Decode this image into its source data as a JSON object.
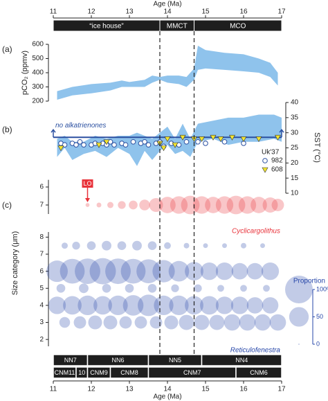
{
  "age_axis": {
    "label": "Age (Ma)",
    "xlim": [
      11,
      17
    ],
    "xticks": [
      11,
      12,
      13,
      14,
      15,
      16,
      17
    ]
  },
  "intervals": [
    {
      "label": "“ice house”",
      "start": 11,
      "end": 13.8
    },
    {
      "label": "MMCT",
      "start": 13.8,
      "end": 14.7
    },
    {
      "label": "MCO",
      "start": 14.7,
      "end": 17
    }
  ],
  "zones": {
    "nannofossil": [
      {
        "label": "NN7",
        "start": 11,
        "end": 11.9
      },
      {
        "label": "NN6",
        "start": 11.9,
        "end": 13.5
      },
      {
        "label": "NN5",
        "start": 13.5,
        "end": 14.9
      },
      {
        "label": "NN4",
        "start": 14.9,
        "end": 17
      }
    ],
    "cnm": [
      {
        "label": "CNM11",
        "start": 11,
        "end": 11.6
      },
      {
        "label": "10",
        "start": 11.6,
        "end": 11.9
      },
      {
        "label": "CNM9",
        "start": 11.9,
        "end": 12.5
      },
      {
        "label": "CNM8",
        "start": 12.5,
        "end": 13.5
      },
      {
        "label": "CNM7",
        "start": 13.5,
        "end": 15.8
      },
      {
        "label": "CNM6",
        "start": 15.8,
        "end": 17
      }
    ]
  },
  "chart_data": [
    {
      "type": "band",
      "panel": "(a)",
      "ylabel": "pCO₂ (ppmv)",
      "ylim": [
        200,
        600
      ],
      "yticks": [
        200,
        300,
        400,
        500,
        600
      ],
      "color": "#8fc3ec",
      "x": [
        11.1,
        11.5,
        12.0,
        12.5,
        12.8,
        13.0,
        13.4,
        13.6,
        13.8,
        14.0,
        14.3,
        14.5,
        14.7,
        14.8,
        15.0,
        15.5,
        16.0,
        16.4,
        16.7,
        16.9
      ],
      "lower": [
        210,
        240,
        255,
        275,
        300,
        300,
        300,
        330,
        350,
        330,
        320,
        300,
        350,
        420,
        430,
        420,
        410,
        400,
        370,
        310
      ],
      "upper": [
        270,
        300,
        320,
        330,
        345,
        335,
        350,
        380,
        370,
        380,
        380,
        370,
        430,
        590,
        560,
        540,
        530,
        500,
        470,
        400
      ]
    },
    {
      "type": "scatter",
      "panel": "(b)",
      "ylabel": "SST (°C)",
      "ylim": [
        10,
        40
      ],
      "yticks": [
        10,
        15,
        20,
        25,
        30,
        35,
        40
      ],
      "band": {
        "color": "#8fc3ec",
        "x": [
          11.1,
          11.3,
          11.5,
          11.8,
          12.1,
          12.4,
          12.7,
          13.0,
          13.2,
          13.4,
          13.6,
          13.8,
          14.0,
          14.2,
          14.4,
          14.6,
          14.8,
          15.2,
          15.6,
          16.0,
          16.4,
          16.8,
          17.0
        ],
        "lower": [
          22,
          25,
          21,
          23,
          24,
          22,
          25,
          23,
          19,
          24,
          21,
          24,
          26,
          23,
          24,
          22,
          27,
          28,
          26,
          27,
          27,
          28,
          27
        ],
        "upper": [
          28,
          29,
          27,
          27,
          29,
          28,
          29,
          29,
          30,
          29,
          28,
          30,
          32,
          28,
          33,
          28,
          33,
          34,
          35,
          35,
          36,
          36,
          35
        ]
      },
      "threshold": {
        "value": 28.5,
        "label": "no alkatrienones",
        "color": "#2a4fa0"
      },
      "legend_title": "Uk'37",
      "series": [
        {
          "name": "982",
          "marker": "circle",
          "color": "#2a4fa0",
          "x": [
            11.2,
            11.3,
            11.5,
            11.6,
            11.7,
            11.8,
            12.0,
            12.1,
            12.3,
            12.4,
            12.5,
            12.6,
            12.8,
            12.9,
            13.1,
            13.3,
            13.4,
            13.5,
            13.7,
            13.8,
            13.9,
            14.1,
            14.3,
            14.5,
            14.8,
            15.0,
            15.5,
            16.0
          ],
          "values": [
            26.5,
            26,
            26.5,
            26,
            27,
            26,
            26,
            26.5,
            26.5,
            26,
            27,
            26,
            26.5,
            26,
            27,
            26.5,
            27,
            26,
            26.5,
            27,
            25.5,
            26.5,
            26,
            27,
            27,
            26.5,
            27,
            26.5
          ]
        },
        {
          "name": "608",
          "marker": "triangle",
          "color": "#f2e532",
          "x": [
            11.2,
            12.2,
            12.4,
            13.8,
            13.9,
            14.0,
            14.2,
            14.4,
            14.7,
            14.9,
            15.2,
            15.4,
            15.7,
            16.0,
            16.4,
            16.9
          ],
          "values": [
            25,
            26,
            27,
            26.5,
            25,
            28,
            26,
            28.5,
            28,
            28,
            28.5,
            28,
            28.5,
            28,
            28,
            28.5
          ]
        }
      ]
    },
    {
      "type": "bubble",
      "panel": "(c)",
      "ylabel": "Size category (μm)",
      "axes": [
        {
          "ylim": [
            7.5,
            5.6
          ],
          "yticks": [
            6,
            7
          ]
        },
        {
          "ylim": [
            1.6,
            8.3
          ],
          "yticks": [
            2,
            3,
            4,
            5,
            6,
            7,
            8
          ]
        }
      ],
      "annotation": {
        "label": "LO",
        "x": 11.9
      },
      "size_legend": {
        "label": "Proportion",
        "ticks": [
          {
            "value": 100,
            "label": "100%"
          },
          50,
          0
        ]
      },
      "taxa": [
        {
          "name": "Cyclicargolithus",
          "color": "#e8323a",
          "axis": 0,
          "rows": [
            {
              "size_category": 7,
              "x": [
                11.9,
                12.2,
                12.5,
                12.8,
                13.1,
                13.4,
                13.7,
                14.0,
                14.3,
                14.6,
                14.9,
                15.2,
                15.5,
                15.8,
                16.1,
                16.4,
                16.7,
                16.9
              ],
              "values": [
                2,
                3,
                5,
                8,
                10,
                15,
                25,
                35,
                40,
                45,
                40,
                35,
                40,
                45,
                40,
                35,
                30,
                20
              ]
            }
          ]
        },
        {
          "name": "Reticulofenestra",
          "color": "#2545a8",
          "axis": 1,
          "rows": [
            {
              "size_category": 7.5,
              "x": [
                11.3,
                11.6,
                12.0,
                12.4,
                12.8,
                13.2,
                13.6,
                14.0,
                14.5,
                15.0,
                15.5,
                16.0,
                16.5
              ],
              "values": [
                5,
                8,
                10,
                12,
                10,
                12,
                10,
                6,
                4,
                3,
                3,
                4,
                3
              ]
            },
            {
              "size_category": 6,
              "x": [
                11.1,
                11.5,
                11.9,
                12.3,
                12.7,
                13.1,
                13.5,
                13.9,
                14.3,
                14.7,
                15.1,
                15.5,
                15.9,
                16.3,
                16.7
              ],
              "values": [
                60,
                80,
                85,
                90,
                85,
                80,
                75,
                65,
                55,
                45,
                40,
                40,
                35,
                35,
                40
              ]
            },
            {
              "size_category": 5,
              "x": [
                11.2,
                11.8,
                12.4,
                13.0,
                13.6,
                14.2,
                14.8,
                15.4,
                16.0,
                16.6
              ],
              "values": [
                10,
                12,
                10,
                10,
                10,
                8,
                8,
                6,
                6,
                6
              ]
            },
            {
              "size_category": 4,
              "x": [
                11.1,
                11.5,
                11.9,
                12.3,
                12.7,
                13.1,
                13.5,
                13.9,
                14.3,
                14.7,
                15.1,
                15.5,
                15.9,
                16.3,
                16.7
              ],
              "values": [
                40,
                45,
                50,
                45,
                50,
                55,
                60,
                50,
                50,
                45,
                45,
                40,
                40,
                35,
                35
              ]
            },
            {
              "size_category": 3,
              "x": [
                11.3,
                11.7,
                12.1,
                12.5,
                12.9,
                13.3,
                13.7,
                14.1,
                14.5,
                14.9,
                15.3,
                15.7,
                16.1,
                16.5,
                16.9
              ],
              "values": [
                15,
                20,
                25,
                25,
                20,
                20,
                20,
                25,
                30,
                30,
                30,
                35,
                35,
                35,
                35
              ]
            }
          ]
        }
      ]
    }
  ]
}
